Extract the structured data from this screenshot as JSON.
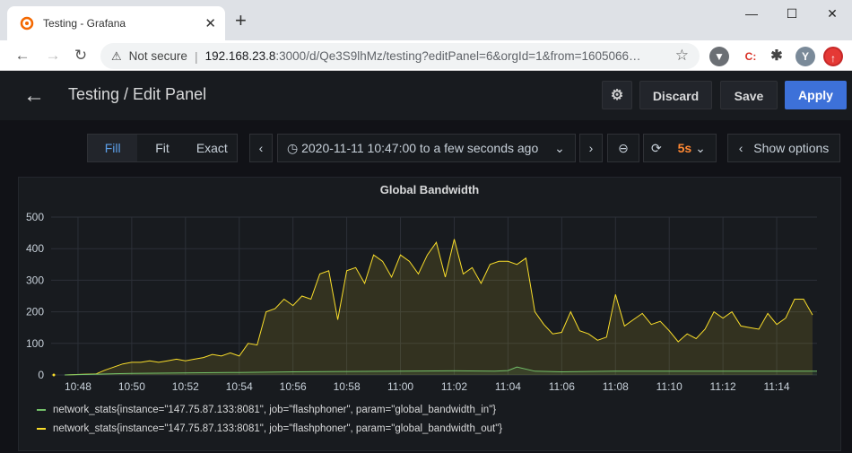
{
  "browser": {
    "tab_title": "Testing - Grafana",
    "tab_close": "✕",
    "new_tab": "+",
    "window_controls": {
      "minimize": "—",
      "maximize": "☐",
      "close": "✕"
    },
    "address": {
      "warning_icon": "warning-icon",
      "not_secure": "Not secure",
      "separator": "|",
      "host": "192.168.23.8",
      "rest": ":3000/d/Qe3S9lhMz/testing?editPanel=6&orgId=1&from=1605066…"
    },
    "extensions": [
      {
        "name": "shield-extension-icon",
        "label": "",
        "color": "#6b6f74"
      },
      {
        "name": "c-extension-icon",
        "label": "C:",
        "color": "#d93025"
      },
      {
        "name": "puzzle-extension-icon",
        "label": "",
        "color": "#444"
      },
      {
        "name": "profile-avatar",
        "label": "Y",
        "color": "#7a8a99"
      },
      {
        "name": "stop-extension-icon",
        "label": "",
        "color": "#e53935"
      }
    ]
  },
  "grafana": {
    "title": "Testing / Edit Panel",
    "buttons": {
      "discard": "Discard",
      "save": "Save",
      "apply": "Apply"
    },
    "view_modes": [
      {
        "label": "Fill",
        "active": true
      },
      {
        "label": "Fit",
        "active": false
      },
      {
        "label": "Exact",
        "active": false
      }
    ],
    "time_range": "2020-11-11 10:47:00 to a few seconds ago",
    "refresh_rate": "5s",
    "show_options": "Show options"
  },
  "chart_data": {
    "type": "line",
    "title": "Global Bandwidth",
    "ylim": [
      0,
      500
    ],
    "yticks": [
      0,
      100,
      200,
      300,
      400,
      500
    ],
    "x_range": [
      "10:47:00",
      "11:15:30"
    ],
    "xticks": [
      "10:48",
      "10:50",
      "10:52",
      "10:54",
      "10:56",
      "10:58",
      "11:00",
      "11:02",
      "11:04",
      "11:06",
      "11:08",
      "11:10",
      "11:12",
      "11:14"
    ],
    "grid": true,
    "legend_position": "bottom",
    "series": [
      {
        "name": "network_stats{instance=\"147.75.87.133:8081\", job=\"flashphoner\", param=\"global_bandwidth_in\"}",
        "color": "#73bf69",
        "x": [
          "10:47:30",
          "10:50:00",
          "10:54:00",
          "10:56:00",
          "10:58:00",
          "11:00:00",
          "11:02:00",
          "11:03:30",
          "11:04:00",
          "11:04:20",
          "11:05:00",
          "11:06:00",
          "11:08:00",
          "11:10:00",
          "11:12:00",
          "11:15:30"
        ],
        "values": [
          0,
          5,
          8,
          10,
          11,
          12,
          13,
          12,
          14,
          25,
          12,
          10,
          12,
          12,
          12,
          12
        ]
      },
      {
        "name": "network_stats{instance=\"147.75.87.133:8081\", job=\"flashphoner\", param=\"global_bandwidth_out\"}",
        "color": "#fade2a",
        "x": [
          "10:47:30",
          "10:48:10",
          "10:48:40",
          "10:49:00",
          "10:49:20",
          "10:49:40",
          "10:50:00",
          "10:50:20",
          "10:50:40",
          "10:51:00",
          "10:51:20",
          "10:51:40",
          "10:52:00",
          "10:52:20",
          "10:52:40",
          "10:53:00",
          "10:53:20",
          "10:53:40",
          "10:54:00",
          "10:54:20",
          "10:54:40",
          "10:55:00",
          "10:55:20",
          "10:55:40",
          "10:56:00",
          "10:56:20",
          "10:56:40",
          "10:57:00",
          "10:57:20",
          "10:57:40",
          "10:58:00",
          "10:58:20",
          "10:58:40",
          "10:59:00",
          "10:59:20",
          "10:59:40",
          "11:00:00",
          "11:00:20",
          "11:00:40",
          "11:01:00",
          "11:01:20",
          "11:01:40",
          "11:02:00",
          "11:02:20",
          "11:02:40",
          "11:03:00",
          "11:03:20",
          "11:03:40",
          "11:04:00",
          "11:04:20",
          "11:04:40",
          "11:05:00",
          "11:05:20",
          "11:05:40",
          "11:06:00",
          "11:06:20",
          "11:06:40",
          "11:07:00",
          "11:07:20",
          "11:07:40",
          "11:08:00",
          "11:08:20",
          "11:08:40",
          "11:09:00",
          "11:09:20",
          "11:09:40",
          "11:10:00",
          "11:10:20",
          "11:10:40",
          "11:11:00",
          "11:11:20",
          "11:11:40",
          "11:12:00",
          "11:12:20",
          "11:12:40",
          "11:13:00",
          "11:13:20",
          "11:13:40",
          "11:14:00",
          "11:14:20",
          "11:14:40",
          "11:15:00",
          "11:15:20"
        ],
        "values": [
          0,
          2,
          3,
          15,
          25,
          35,
          40,
          40,
          45,
          40,
          45,
          50,
          45,
          50,
          55,
          65,
          60,
          70,
          60,
          100,
          95,
          200,
          210,
          240,
          220,
          250,
          240,
          320,
          330,
          175,
          330,
          340,
          290,
          380,
          360,
          310,
          380,
          360,
          320,
          380,
          420,
          310,
          430,
          320,
          340,
          290,
          350,
          360,
          360,
          350,
          370,
          200,
          160,
          130,
          135,
          200,
          140,
          130,
          110,
          120,
          255,
          155,
          175,
          195,
          160,
          170,
          140,
          105,
          130,
          115,
          145,
          200,
          180,
          200,
          155,
          150,
          145,
          195,
          160,
          180,
          240,
          240,
          190
        ]
      }
    ]
  }
}
